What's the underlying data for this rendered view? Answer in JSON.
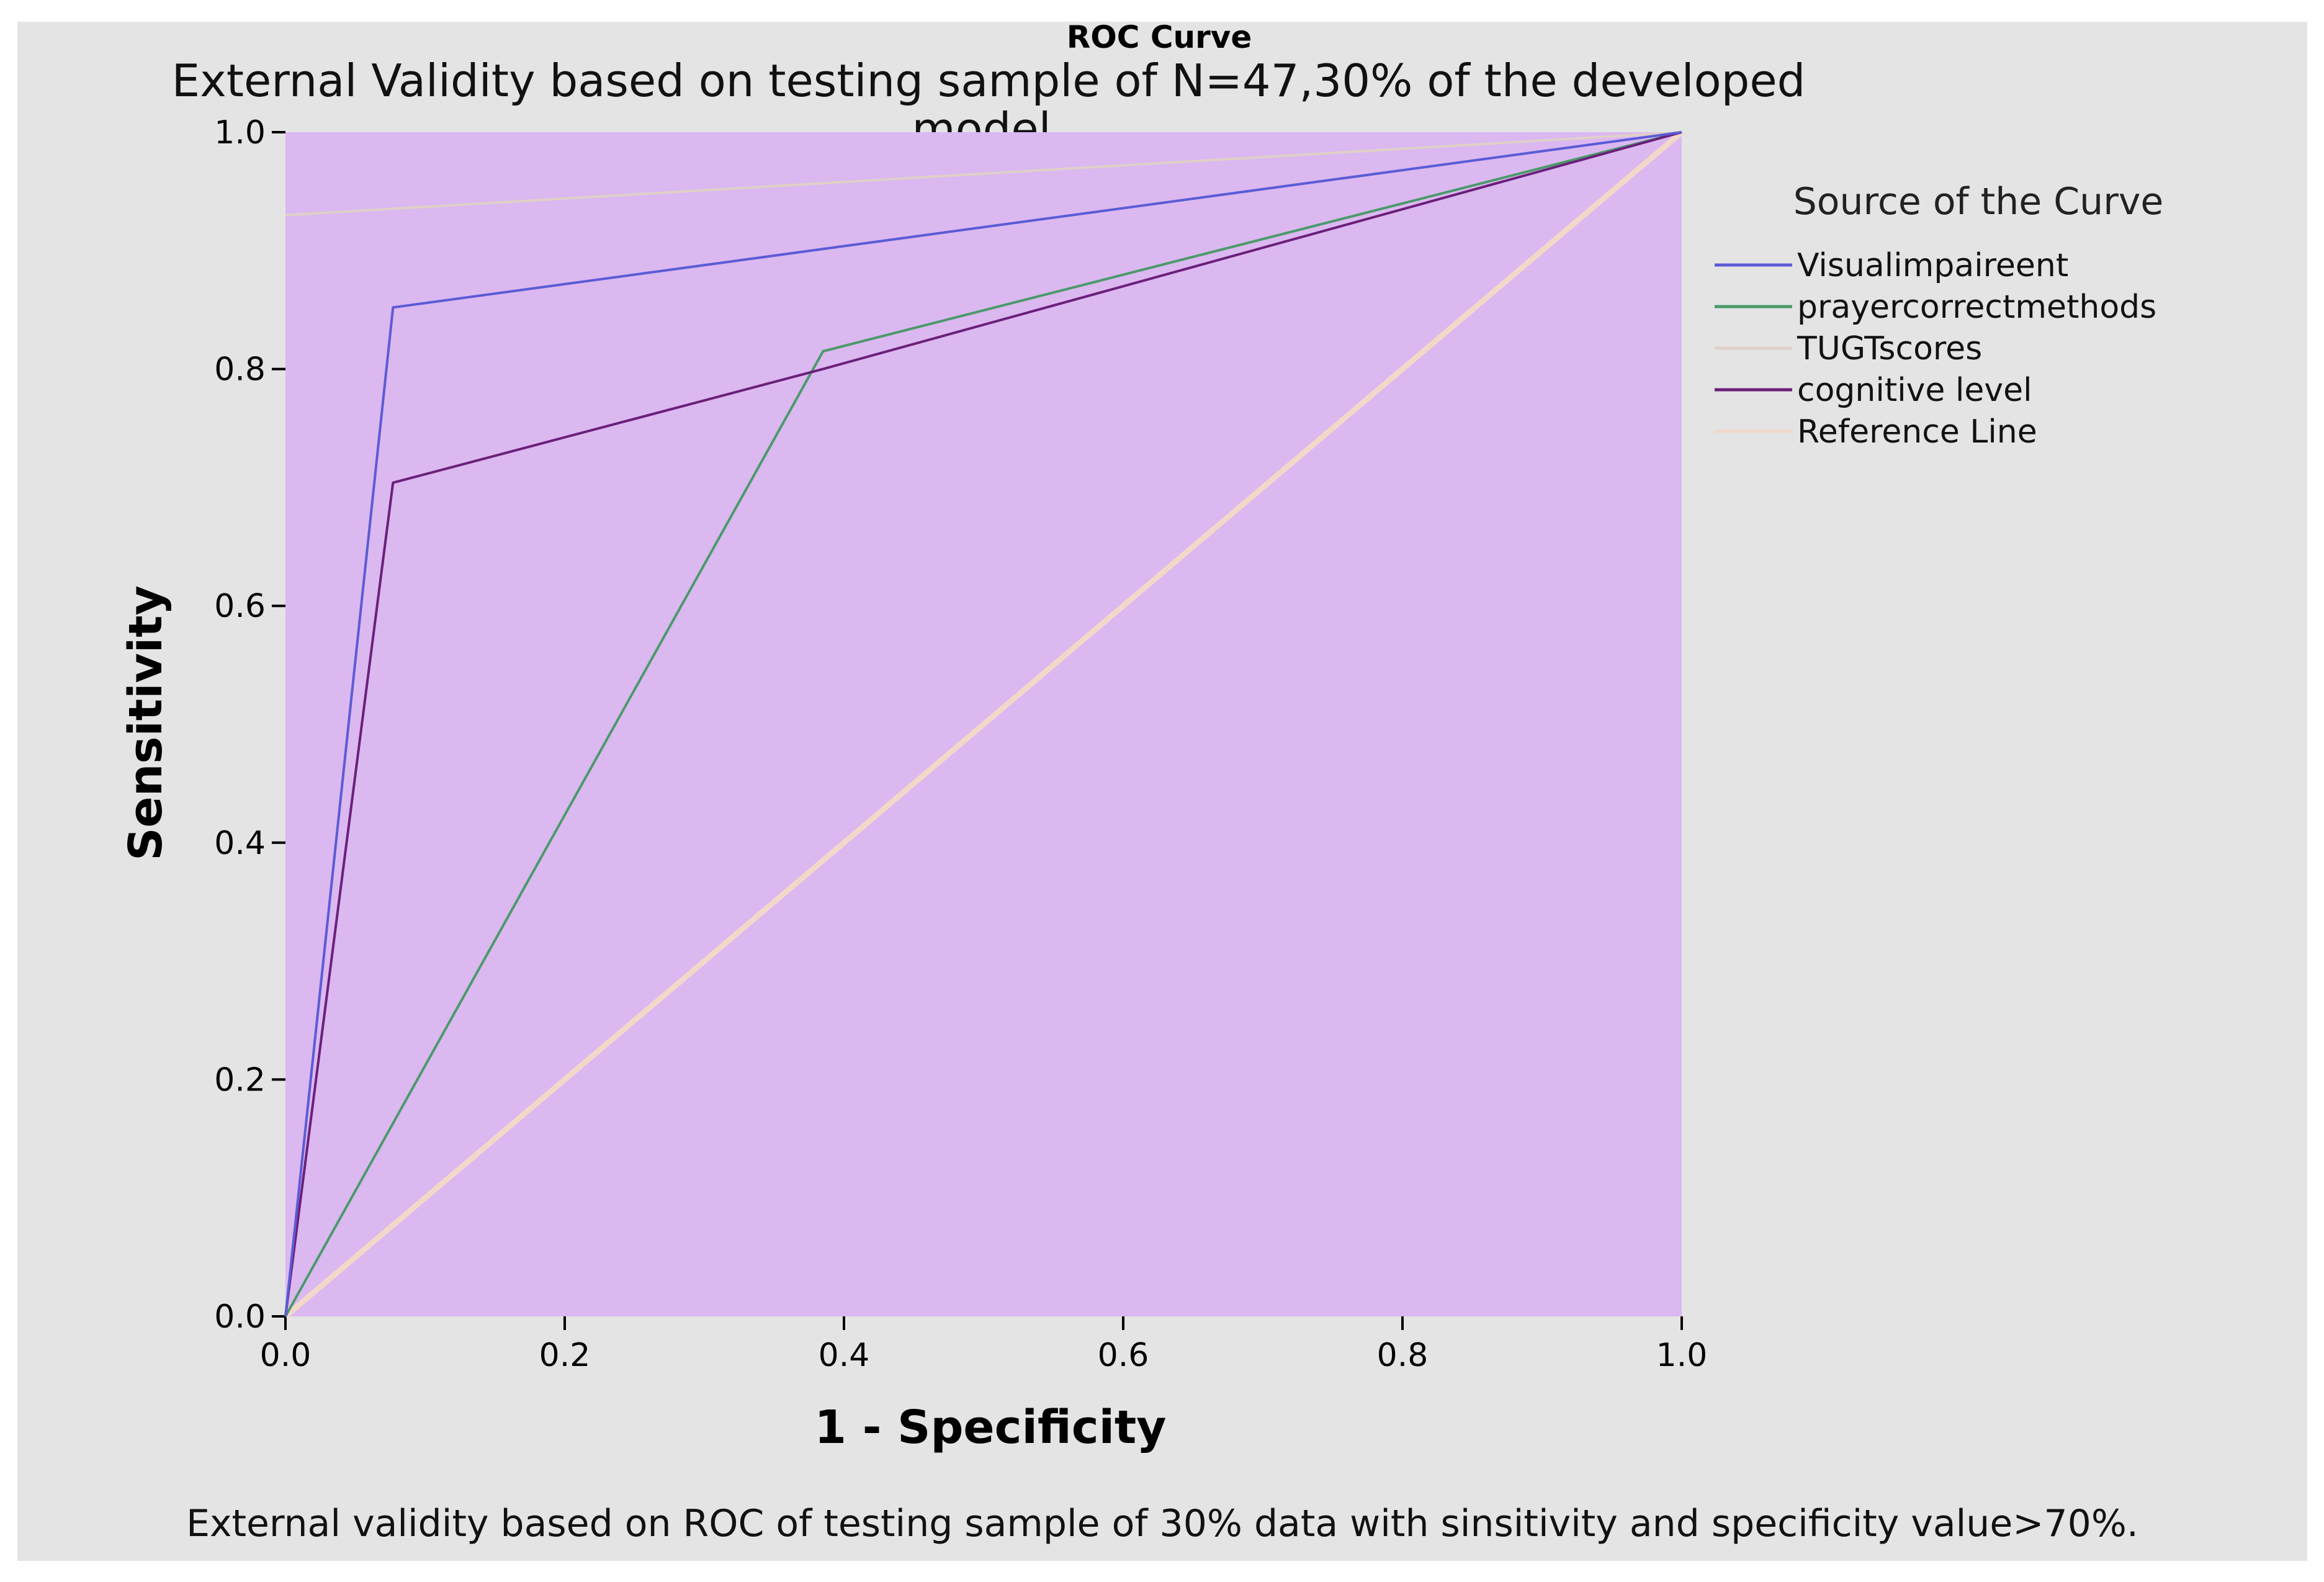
{
  "chart_data": {
    "type": "line",
    "title": "ROC Curve",
    "subtitle_lines": [
      "External Validity based on testing sample of N=47,30% of the developed",
      "model."
    ],
    "xlabel": "1 - Specificity",
    "ylabel": "Sensitivity",
    "xlim": [
      0.0,
      1.0
    ],
    "ylim": [
      0.0,
      1.0
    ],
    "xticks": [
      "0.0",
      "0.2",
      "0.4",
      "0.6",
      "0.8",
      "1.0"
    ],
    "yticks": [
      "0.0",
      "0.2",
      "0.4",
      "0.6",
      "0.8",
      "1.0"
    ],
    "grid": false,
    "plot_background": "#dbb8f0",
    "legend": {
      "title": "Source of the Curve",
      "position": "right"
    },
    "series": [
      {
        "name": "Visualimpaireent",
        "color": "#5b5bd6",
        "points": [
          [
            0.0,
            0.0
          ],
          [
            0.077,
            0.852
          ],
          [
            1.0,
            1.0
          ]
        ]
      },
      {
        "name": "prayercorrectmethods",
        "color": "#4a9a6a",
        "points": [
          [
            0.0,
            0.0
          ],
          [
            0.385,
            0.815
          ],
          [
            1.0,
            1.0
          ]
        ]
      },
      {
        "name": "TUGTscores",
        "color": "#e0d0c8",
        "points": [
          [
            0.0,
            0.93
          ],
          [
            1.0,
            1.0
          ]
        ]
      },
      {
        "name": "cognitive level",
        "color": "#6b1f7a",
        "points": [
          [
            0.0,
            0.0
          ],
          [
            0.077,
            0.704
          ],
          [
            0.385,
            0.8
          ],
          [
            1.0,
            1.0
          ]
        ]
      },
      {
        "name": "Reference Line",
        "color": "#f1d8c9",
        "points": [
          [
            0.0,
            0.0
          ],
          [
            1.0,
            1.0
          ]
        ]
      }
    ],
    "caption": "External validity based on ROC of testing sample of 30% data with sinsitivity and specificity value>70%."
  }
}
